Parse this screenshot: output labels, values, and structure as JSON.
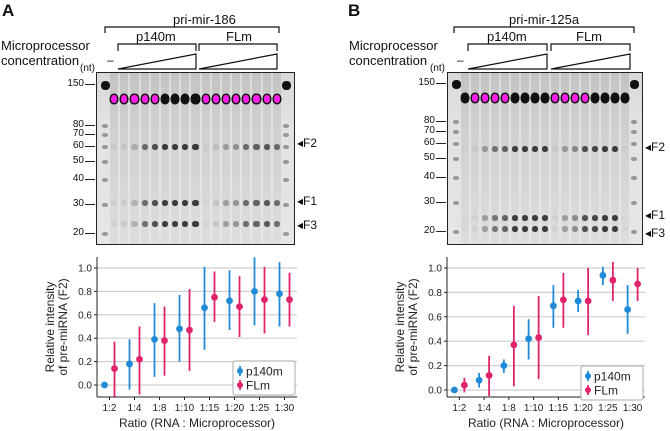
{
  "figure": {
    "panels": [
      {
        "letter": "A",
        "rna": "pri-mir-186",
        "microprocessor_label_1": "Microprocessor",
        "microprocessor_label_2": "concentration",
        "minus": "–",
        "groups": [
          "p140m",
          "FLm"
        ],
        "nt_unit": "(nt)",
        "markers": [
          "150",
          "80",
          "70",
          "60",
          "50",
          "40",
          "30",
          "20"
        ],
        "fragments": [
          "F2",
          "F1",
          "F3"
        ]
      },
      {
        "letter": "B",
        "rna": "pri-mir-125a",
        "microprocessor_label_1": "Microprocessor",
        "microprocessor_label_2": "concentration",
        "minus": "–",
        "groups": [
          "p140m",
          "FLm"
        ],
        "nt_unit": "(nt)",
        "markers": [
          "150",
          "80",
          "70",
          "60",
          "50",
          "40",
          "30",
          "20"
        ],
        "fragments": [
          "F2",
          "F1",
          "F3"
        ]
      }
    ],
    "colors": {
      "p140m": "#1f8ad6",
      "FLm": "#e0226a",
      "saturated_band": "#ff1fe8"
    }
  },
  "chart_data": [
    {
      "type": "scatter",
      "panel": "A",
      "title": "",
      "xlabel": "Ratio (RNA : Microprocessor)",
      "ylabel": "Relative intensity of pre-miRNA (F2)",
      "ylabel_lines": [
        "Relative intensity",
        "of pre-miRNA (F2)"
      ],
      "categories": [
        "1:2",
        "1:4",
        "1:8",
        "1:10",
        "1:15",
        "1:20",
        "1:25",
        "1:30"
      ],
      "yticks": [
        "0.0",
        "0.2",
        "0.4",
        "0.6",
        "0.8",
        "1.0"
      ],
      "ylim": [
        -0.1,
        1.1
      ],
      "grid": true,
      "legend": "bottom-right",
      "series": [
        {
          "name": "p140m",
          "color": "#1f8ad6",
          "values": [
            0.0,
            0.18,
            0.39,
            0.48,
            0.66,
            0.72,
            0.8,
            0.78
          ],
          "err_low": [
            0.0,
            -0.04,
            0.07,
            0.2,
            0.3,
            0.47,
            0.51,
            0.5
          ],
          "err_high": [
            0.0,
            0.39,
            0.7,
            0.77,
            1.01,
            0.98,
            1.09,
            1.05
          ]
        },
        {
          "name": "FLm",
          "color": "#e0226a",
          "values": [
            0.14,
            0.22,
            0.38,
            0.47,
            0.75,
            0.67,
            0.73,
            0.73
          ],
          "err_low": [
            -0.1,
            -0.08,
            0.08,
            0.12,
            0.54,
            0.41,
            0.44,
            0.5
          ],
          "err_high": [
            0.37,
            0.5,
            0.67,
            0.82,
            0.97,
            0.93,
            1.01,
            0.96
          ]
        }
      ]
    },
    {
      "type": "scatter",
      "panel": "B",
      "title": "",
      "xlabel": "Ratio (RNA : Microprocessor)",
      "ylabel": "Relative intensity of pre-miRNA (F2)",
      "ylabel_lines": [
        "Relative intensity",
        "of pre-miRNA (F2)"
      ],
      "categories": [
        "1:2",
        "1:4",
        "1:8",
        "1:10",
        "1:15",
        "1:20",
        "1:25",
        "1:30"
      ],
      "yticks": [
        "0.0",
        "0.2",
        "0.4",
        "0.6",
        "0.8",
        "1.0"
      ],
      "ylim": [
        -0.05,
        1.1
      ],
      "grid": true,
      "legend": "bottom-right",
      "series": [
        {
          "name": "p140m",
          "color": "#1f8ad6",
          "values": [
            0.0,
            0.08,
            0.2,
            0.42,
            0.69,
            0.73,
            0.94,
            0.66
          ],
          "err_low": [
            0.0,
            0.02,
            0.14,
            0.25,
            0.51,
            0.64,
            0.86,
            0.46
          ],
          "err_high": [
            0.0,
            0.14,
            0.25,
            0.58,
            0.86,
            0.82,
            1.01,
            0.86
          ]
        },
        {
          "name": "FLm",
          "color": "#e0226a",
          "values": [
            0.04,
            0.12,
            0.37,
            0.43,
            0.74,
            0.73,
            0.9,
            0.87
          ],
          "err_low": [
            -0.02,
            -0.05,
            0.03,
            0.09,
            0.51,
            0.45,
            0.73,
            0.73
          ],
          "err_high": [
            0.1,
            0.28,
            0.69,
            0.77,
            0.96,
            1.0,
            1.05,
            1.0
          ]
        }
      ]
    }
  ]
}
